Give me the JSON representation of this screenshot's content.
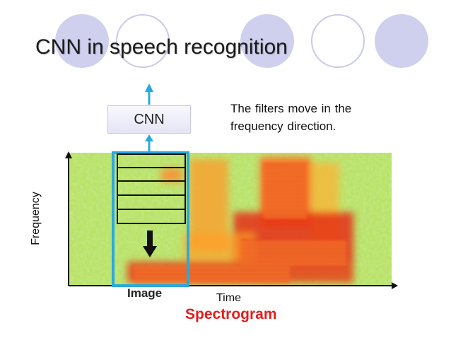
{
  "slide": {
    "title": "CNN in speech recognition",
    "cnn_label": "CNN",
    "note": "The filters move in the frequency direction.",
    "yaxis_label": "Frequency",
    "image_label": "Image",
    "xaxis_label": "Time",
    "caption": "Spectrogram"
  },
  "colors": {
    "decor_circle_fill": "#cfd0ee",
    "decor_circle_ring": "#c9cae9",
    "arrow_blue": "#27a8e0",
    "window_outline": "#2aa9df",
    "caption_red": "#e41c1c"
  },
  "icons": {
    "filter_direction": "arrow-down-icon",
    "output_arrows": "arrow-up-icon"
  }
}
